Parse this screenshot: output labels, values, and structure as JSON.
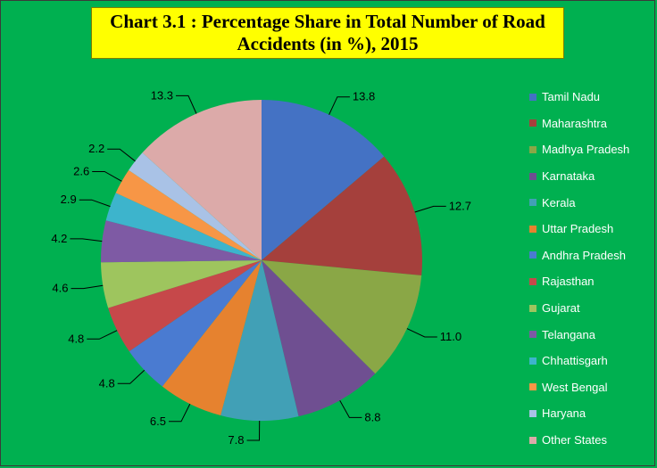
{
  "chart_data": {
    "type": "pie",
    "title": "Chart 3.1 : Percentage Share in Total Number of Road Accidents (in %), 2015",
    "labels": [
      "Tamil Nadu",
      "Maharashtra",
      "Madhya Pradesh",
      "Karnataka",
      "Kerala",
      "Uttar Pradesh",
      "Andhra Pradesh",
      "Rajasthan",
      "Gujarat",
      "Telangana",
      "Chhattisgarh",
      "West Bengal",
      "Haryana",
      "Other States"
    ],
    "values": [
      13.8,
      12.7,
      11.0,
      8.8,
      7.8,
      6.5,
      4.8,
      4.8,
      4.6,
      4.2,
      2.9,
      2.6,
      2.2,
      13.3
    ],
    "value_labels": [
      "13.8",
      "12.7",
      "11.0",
      "8.8",
      "7.8",
      "6.5",
      "4.8",
      "4.8",
      "4.6",
      "4.2",
      "2.9",
      "2.6",
      "2.2",
      "13.3"
    ],
    "colors": [
      "#4472c4",
      "#a5403c",
      "#8aa746",
      "#6f4f91",
      "#41a0b6",
      "#e6822f",
      "#4a7bd1",
      "#c6484a",
      "#9ec55e",
      "#7e5aa4",
      "#3db4cc",
      "#f79646",
      "#a9c2e6",
      "#dcaaa9"
    ],
    "legend_position": "right",
    "start_angle": "12 o'clock, clockwise"
  }
}
